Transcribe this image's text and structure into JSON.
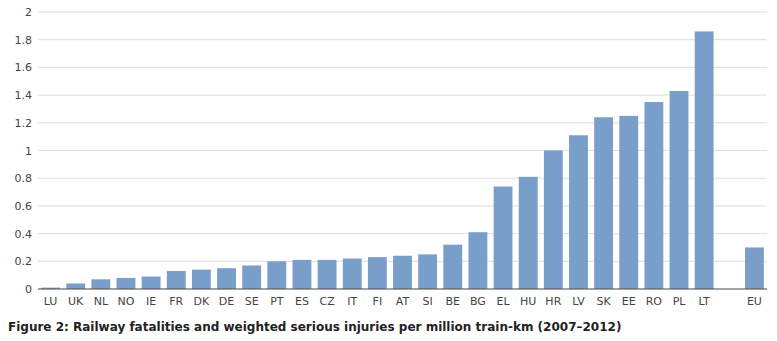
{
  "chart_data": {
    "type": "bar",
    "title": "Figure 2: Railway fatalities and weighted serious injuries per million train-km (2007–2012)",
    "categories": [
      "LU",
      "UK",
      "NL",
      "NO",
      "IE",
      "FR",
      "DK",
      "DE",
      "SE",
      "PT",
      "ES",
      "CZ",
      "IT",
      "FI",
      "AT",
      "SI",
      "BE",
      "BG",
      "EL",
      "HU",
      "HR",
      "LV",
      "SK",
      "EE",
      "RO",
      "PL",
      "LT",
      null,
      "EU"
    ],
    "values": [
      0.01,
      0.04,
      0.07,
      0.08,
      0.09,
      0.13,
      0.14,
      0.15,
      0.17,
      0.2,
      0.21,
      0.21,
      0.22,
      0.23,
      0.24,
      0.25,
      0.32,
      0.41,
      0.74,
      0.81,
      1.0,
      1.11,
      1.24,
      1.25,
      1.35,
      1.43,
      1.86,
      0.0,
      0.3
    ],
    "color": "#7a9eca",
    "ylim": [
      0,
      2.0
    ],
    "yticks": [
      0,
      0.2,
      0.4,
      0.6,
      0.8,
      1,
      1.2,
      1.4,
      1.6,
      1.8,
      2
    ],
    "grid": true
  }
}
